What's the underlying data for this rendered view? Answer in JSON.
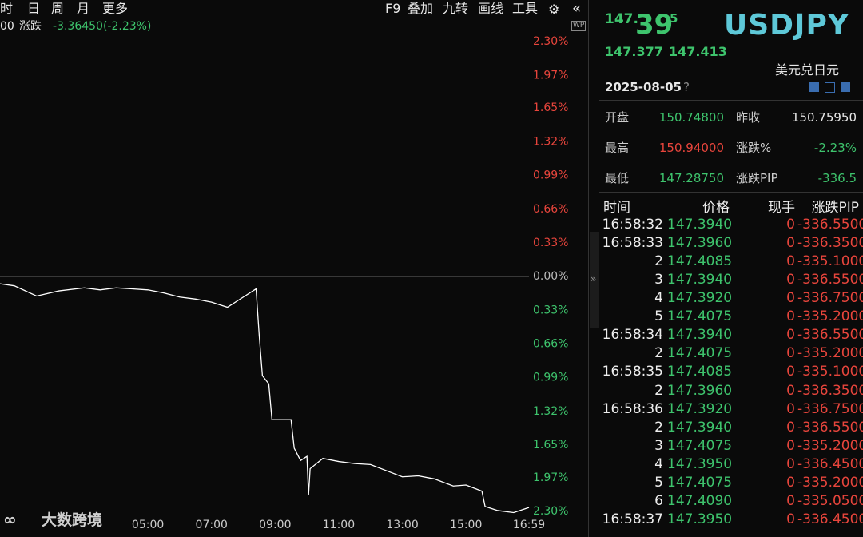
{
  "toolbar": {
    "left": [
      "时",
      "日",
      "周",
      "月",
      "更多"
    ],
    "right": [
      "F9",
      "叠加",
      "九转",
      "画线",
      "工具"
    ]
  },
  "info_bar": {
    "prefix": "00",
    "label": "涨跌",
    "value": "-3.36450(-2.23%)"
  },
  "watermark": "大数跨境",
  "chart_data": {
    "type": "line",
    "x": [
      0.35,
      0.8,
      1.5,
      2.2,
      3.0,
      3.5,
      4.0,
      4.5,
      5.0,
      5.5,
      6.0,
      6.5,
      7.0,
      7.5,
      8.0,
      8.4,
      8.5,
      8.6,
      8.8,
      8.9,
      9.5,
      9.6,
      9.8,
      10.0,
      10.05,
      10.1,
      10.5,
      11.0,
      11.5,
      12.0,
      12.5,
      13.0,
      13.5,
      14.0,
      14.6,
      15.0,
      15.5,
      15.6,
      16.0,
      16.5,
      16.98
    ],
    "values": [
      -0.07,
      -0.09,
      -0.19,
      -0.14,
      -0.11,
      -0.13,
      -0.11,
      -0.12,
      -0.13,
      -0.16,
      -0.2,
      -0.22,
      -0.25,
      -0.3,
      -0.2,
      -0.12,
      -0.58,
      -0.97,
      -1.05,
      -1.4,
      -1.4,
      -1.68,
      -1.8,
      -1.76,
      -2.14,
      -1.88,
      -1.78,
      -1.81,
      -1.83,
      -1.84,
      -1.9,
      -1.96,
      -1.95,
      -1.98,
      -2.05,
      -2.04,
      -2.1,
      -2.25,
      -2.29,
      -2.31,
      -2.26
    ],
    "color": "#ffffff",
    "up_color": "#e8453c",
    "down_color": "#3ec46d",
    "zero_color": "#bbbbbb",
    "xlim": [
      0.35,
      16.98
    ],
    "xticks": [
      {
        "value": 5,
        "label": "05:00"
      },
      {
        "value": 7,
        "label": "07:00"
      },
      {
        "value": 9,
        "label": "09:00"
      },
      {
        "value": 11,
        "label": "11:00"
      },
      {
        "value": 13,
        "label": "13:00"
      },
      {
        "value": 15,
        "label": "15:00"
      },
      {
        "value": 16.98,
        "label": "16:59"
      }
    ],
    "ylim": [
      -2.4,
      2.7
    ],
    "yticks": [
      {
        "value": 2.3,
        "label": "2.30%"
      },
      {
        "value": 1.97,
        "label": "1.97%"
      },
      {
        "value": 1.65,
        "label": "1.65%"
      },
      {
        "value": 1.32,
        "label": "1.32%"
      },
      {
        "value": 0.99,
        "label": "0.99%"
      },
      {
        "value": 0.66,
        "label": "0.66%"
      },
      {
        "value": 0.33,
        "label": "0.33%"
      },
      {
        "value": 0,
        "label": "0.00%"
      },
      {
        "value": -0.33,
        "label": "0.33%"
      },
      {
        "value": -0.66,
        "label": "0.66%"
      },
      {
        "value": -0.99,
        "label": "0.99%"
      },
      {
        "value": -1.32,
        "label": "1.32%"
      },
      {
        "value": -1.65,
        "label": "1.65%"
      },
      {
        "value": -1.97,
        "label": "1.97%"
      },
      {
        "value": -2.3,
        "label": "2.30%"
      }
    ],
    "grid": false
  },
  "quote": {
    "price_head": "147.",
    "price_big": "39",
    "price_tail": "5",
    "symbol": "USDJPY",
    "bid": "147.377",
    "ask": "147.413",
    "name": "美元兑日元",
    "date": "2025-08-05",
    "help": "?"
  },
  "stats": [
    [
      "开盘",
      "150.74800",
      "昨收",
      "150.75950"
    ],
    [
      "最高",
      "150.94000",
      "涨跌%",
      "-2.23%"
    ],
    [
      "最低",
      "147.28750",
      "涨跌PIP",
      "-336.5"
    ]
  ],
  "trades": {
    "header": [
      "时间",
      "价格",
      "现手",
      "涨跌PIP"
    ],
    "rows": [
      [
        "16:58:32",
        "147.3940",
        "0",
        "-336.5500"
      ],
      [
        "16:58:33",
        "147.3960",
        "0",
        "-336.3500"
      ],
      [
        "2",
        "147.4085",
        "0",
        "-335.1000"
      ],
      [
        "3",
        "147.3940",
        "0",
        "-336.5500"
      ],
      [
        "4",
        "147.3920",
        "0",
        "-336.7500"
      ],
      [
        "5",
        "147.4075",
        "0",
        "-335.2000"
      ],
      [
        "16:58:34",
        "147.3940",
        "0",
        "-336.5500"
      ],
      [
        "2",
        "147.4075",
        "0",
        "-335.2000"
      ],
      [
        "16:58:35",
        "147.4085",
        "0",
        "-335.1000"
      ],
      [
        "2",
        "147.3960",
        "0",
        "-336.3500"
      ],
      [
        "16:58:36",
        "147.3920",
        "0",
        "-336.7500"
      ],
      [
        "2",
        "147.3940",
        "0",
        "-336.5500"
      ],
      [
        "3",
        "147.4075",
        "0",
        "-335.2000"
      ],
      [
        "4",
        "147.3950",
        "0",
        "-336.4500"
      ],
      [
        "5",
        "147.4075",
        "0",
        "-335.2000"
      ],
      [
        "6",
        "147.4090",
        "0",
        "-335.0500"
      ],
      [
        "16:58:37",
        "147.3950",
        "0",
        "-336.4500"
      ]
    ]
  }
}
